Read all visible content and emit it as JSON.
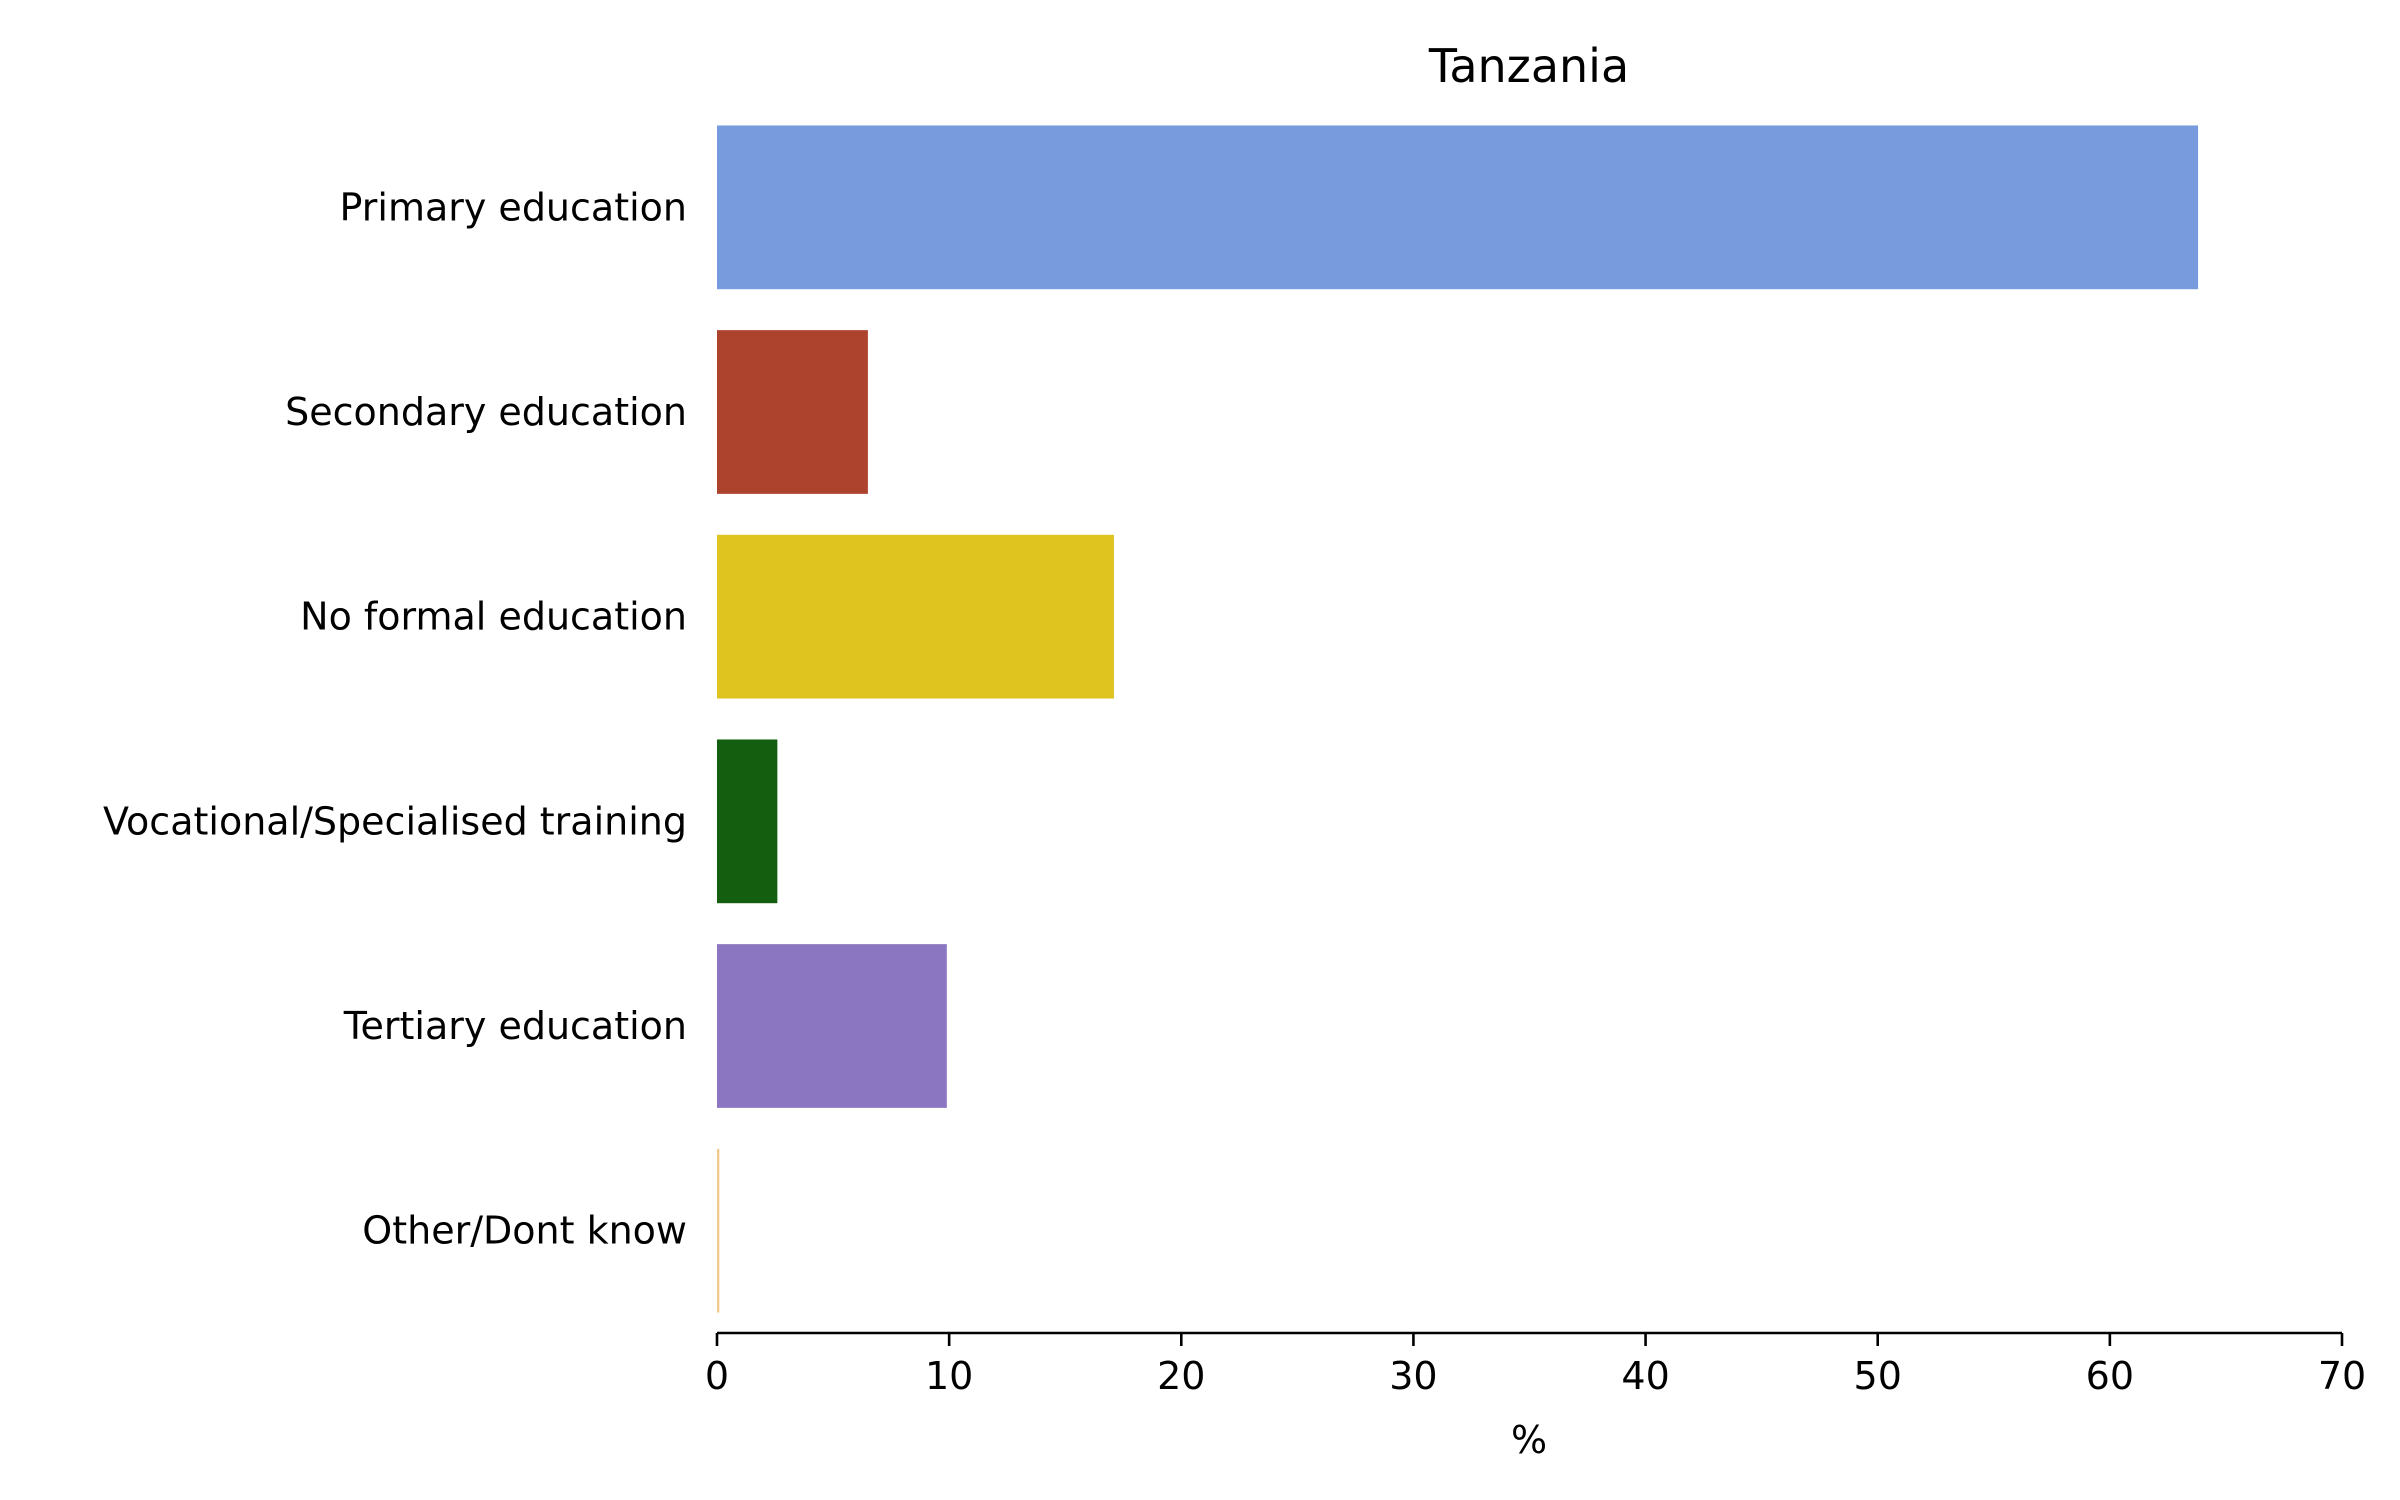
{
  "chart_data": {
    "type": "bar",
    "orientation": "horizontal",
    "title": "Tanzania",
    "xlabel": "%",
    "ylabel": "",
    "xlim": [
      0,
      70
    ],
    "xticks": [
      0,
      10,
      20,
      30,
      40,
      50,
      60,
      70
    ],
    "categories": [
      "Primary education",
      "Secondary education",
      "No formal education",
      "Vocational/Specialised training",
      "Tertiary education",
      "Other/Dont know"
    ],
    "values": [
      63.8,
      6.5,
      17.1,
      2.6,
      9.9,
      0.1
    ],
    "colors": [
      "#779bdc",
      "#ad432c",
      "#dfc31f",
      "#145e10",
      "#8b77c1",
      "#f2c98f"
    ],
    "grid": false,
    "legend": "none"
  }
}
